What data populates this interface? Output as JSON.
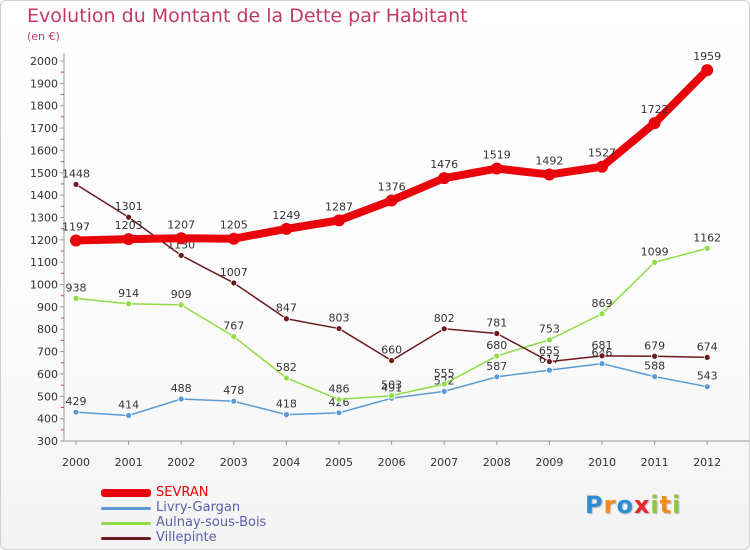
{
  "chart_data": {
    "type": "line",
    "title": "Evolution du Montant de la Dette par Habitant",
    "subtitle": "(en €)",
    "categories": [
      "2000",
      "2001",
      "2002",
      "2003",
      "2004",
      "2005",
      "2006",
      "2007",
      "2008",
      "2009",
      "2010",
      "2011",
      "2012"
    ],
    "ylim": [
      300,
      2000
    ],
    "yticks": [
      300,
      400,
      500,
      600,
      700,
      800,
      900,
      1000,
      1100,
      1200,
      1300,
      1400,
      1500,
      1600,
      1700,
      1800,
      1900,
      2000
    ],
    "grid": false,
    "legend_position": "bottom-left",
    "series": [
      {
        "name": "SEVRAN",
        "color": "#e8040a",
        "values": [
          1197,
          1203,
          1207,
          1205,
          1249,
          1287,
          1376,
          1476,
          1519,
          1492,
          1527,
          1722,
          1959
        ]
      },
      {
        "name": "Livry-Gargan",
        "color": "#5b9bd5",
        "values": [
          429,
          414,
          488,
          478,
          418,
          426,
          491,
          522,
          587,
          617,
          646,
          588,
          543
        ]
      },
      {
        "name": "Aulnay-sous-Bois",
        "color": "#8fdc46",
        "values": [
          938,
          914,
          909,
          767,
          582,
          486,
          503,
          555,
          680,
          753,
          869,
          1099,
          1162
        ]
      },
      {
        "name": "Villepinte",
        "color": "#6b1a1f",
        "values": [
          1448,
          1301,
          1130,
          1007,
          847,
          803,
          660,
          802,
          781,
          655,
          681,
          679,
          674
        ]
      }
    ]
  },
  "logo": {
    "letters": [
      "P",
      "r",
      "o",
      "x",
      "i",
      "t",
      "i"
    ],
    "colors": [
      "#2b8fd6",
      "#f28a1c",
      "#2b8fd6",
      "#e8262c",
      "#8cc63f",
      "#f28a1c",
      "#8cc63f"
    ]
  }
}
